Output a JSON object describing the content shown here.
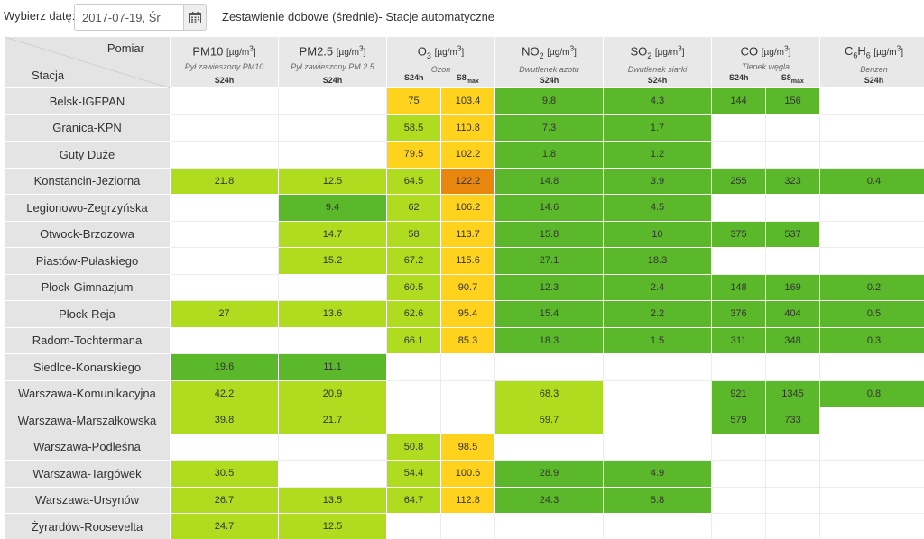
{
  "header": {
    "date_label": "Wybierz datę:",
    "date_value": "2017-07-19, Śr",
    "report_title": "Zestawienie dobowe (średnie)- Stacje automatyczne",
    "calendar_icon": "calendar-icon"
  },
  "table": {
    "corner_top": "Pomiar",
    "corner_bottom": "Stacja",
    "pollutants": [
      {
        "name": "PM10",
        "sub": "",
        "unit_pre": "[µg/m",
        "unit_sup": "3",
        "unit_post": "]",
        "desc": "Pył zawieszony PM10",
        "sub1": "S24h",
        "sub2": ""
      },
      {
        "name": "PM2.5",
        "sub": "",
        "unit_pre": "[µg/m",
        "unit_sup": "3",
        "unit_post": "]",
        "desc": "Pył zawieszony PM 2.5",
        "sub1": "S24h",
        "sub2": ""
      },
      {
        "name": "O",
        "sub": "3",
        "unit_pre": "[µg/m",
        "unit_sup": "3",
        "unit_post": "]",
        "desc": "Ozon",
        "sub1": "S24h",
        "sub2": "S8",
        "sub2_sub": "max"
      },
      {
        "name": "NO",
        "sub": "2",
        "unit_pre": "[µg/m",
        "unit_sup": "3",
        "unit_post": "]",
        "desc": "Dwutlenek azotu",
        "sub1": "S24h",
        "sub2": ""
      },
      {
        "name": "SO",
        "sub": "2",
        "unit_pre": "[µg/m",
        "unit_sup": "3",
        "unit_post": "]",
        "desc": "Dwutlenek siarki",
        "sub1": "S24h",
        "sub2": ""
      },
      {
        "name": "CO",
        "sub": "",
        "unit_pre": "[µg/m",
        "unit_sup": "3",
        "unit_post": "]",
        "desc": "Tlenek węgla",
        "sub1": "S24h",
        "sub2": "S8",
        "sub2_sub": "max"
      },
      {
        "name": "C",
        "sub": "6",
        "name2": "H",
        "sub_b": "6",
        "unit_pre": "[µg/m",
        "unit_sup": "3",
        "unit_post": "]",
        "desc": "Benzen",
        "sub1": "S24h",
        "sub2": ""
      }
    ],
    "level_colors": {
      "g": "#5cb82b",
      "l": "#afdc1e",
      "y": "#ffd21e",
      "o": "#e8860e",
      "e": "#ffffff"
    },
    "rows": [
      {
        "station": "Belsk-IGFPAN",
        "cells": [
          [
            "",
            ""
          ],
          [
            "",
            ""
          ],
          [
            "75",
            "y"
          ],
          [
            "103.4",
            "y"
          ],
          [
            "9.8",
            "g"
          ],
          [
            "4.3",
            "g"
          ],
          [
            "144",
            "g"
          ],
          [
            "156",
            "g"
          ],
          [
            "",
            ""
          ]
        ]
      },
      {
        "station": "Granica-KPN",
        "cells": [
          [
            "",
            ""
          ],
          [
            "",
            ""
          ],
          [
            "58.5",
            "l"
          ],
          [
            "110.8",
            "y"
          ],
          [
            "7.3",
            "g"
          ],
          [
            "1.7",
            "g"
          ],
          [
            "",
            ""
          ],
          [
            "",
            ""
          ],
          [
            "",
            ""
          ]
        ]
      },
      {
        "station": "Guty Duże",
        "cells": [
          [
            "",
            ""
          ],
          [
            "",
            ""
          ],
          [
            "79.5",
            "y"
          ],
          [
            "102.2",
            "y"
          ],
          [
            "1.8",
            "g"
          ],
          [
            "1.2",
            "g"
          ],
          [
            "",
            ""
          ],
          [
            "",
            ""
          ],
          [
            "",
            ""
          ]
        ]
      },
      {
        "station": "Konstancin-Jeziorna",
        "cells": [
          [
            "21.8",
            "l"
          ],
          [
            "12.5",
            "l"
          ],
          [
            "64.5",
            "l"
          ],
          [
            "122.2",
            "o"
          ],
          [
            "14.8",
            "g"
          ],
          [
            "3.9",
            "g"
          ],
          [
            "255",
            "g"
          ],
          [
            "323",
            "g"
          ],
          [
            "0.4",
            "g"
          ]
        ]
      },
      {
        "station": "Legionowo-Zegrzyńska",
        "cells": [
          [
            "",
            ""
          ],
          [
            "9.4",
            "g"
          ],
          [
            "62",
            "l"
          ],
          [
            "106.2",
            "y"
          ],
          [
            "14.6",
            "g"
          ],
          [
            "4.5",
            "g"
          ],
          [
            "",
            ""
          ],
          [
            "",
            ""
          ],
          [
            "",
            ""
          ]
        ]
      },
      {
        "station": "Otwock-Brzozowa",
        "cells": [
          [
            "",
            ""
          ],
          [
            "14.7",
            "l"
          ],
          [
            "58",
            "l"
          ],
          [
            "113.7",
            "y"
          ],
          [
            "15.8",
            "g"
          ],
          [
            "10",
            "g"
          ],
          [
            "375",
            "g"
          ],
          [
            "537",
            "g"
          ],
          [
            "",
            ""
          ]
        ]
      },
      {
        "station": "Piastów-Pułaskiego",
        "cells": [
          [
            "",
            ""
          ],
          [
            "15.2",
            "l"
          ],
          [
            "67.2",
            "l"
          ],
          [
            "115.6",
            "y"
          ],
          [
            "27.1",
            "g"
          ],
          [
            "18.3",
            "g"
          ],
          [
            "",
            ""
          ],
          [
            "",
            ""
          ],
          [
            "",
            ""
          ]
        ]
      },
      {
        "station": "Płock-Gimnazjum",
        "cells": [
          [
            "",
            ""
          ],
          [
            "",
            ""
          ],
          [
            "60.5",
            "l"
          ],
          [
            "90.7",
            "y"
          ],
          [
            "12.3",
            "g"
          ],
          [
            "2.4",
            "g"
          ],
          [
            "148",
            "g"
          ],
          [
            "169",
            "g"
          ],
          [
            "0.2",
            "g"
          ]
        ]
      },
      {
        "station": "Płock-Reja",
        "cells": [
          [
            "27",
            "l"
          ],
          [
            "13.6",
            "l"
          ],
          [
            "62.6",
            "l"
          ],
          [
            "95.4",
            "y"
          ],
          [
            "15.4",
            "g"
          ],
          [
            "2.2",
            "g"
          ],
          [
            "376",
            "g"
          ],
          [
            "404",
            "g"
          ],
          [
            "0.5",
            "g"
          ]
        ]
      },
      {
        "station": "Radom-Tochtermana",
        "cells": [
          [
            "",
            ""
          ],
          [
            "",
            ""
          ],
          [
            "66.1",
            "l"
          ],
          [
            "85.3",
            "y"
          ],
          [
            "18.3",
            "g"
          ],
          [
            "1.5",
            "g"
          ],
          [
            "311",
            "g"
          ],
          [
            "348",
            "g"
          ],
          [
            "0.3",
            "g"
          ]
        ]
      },
      {
        "station": "Siedlce-Konarskiego",
        "cells": [
          [
            "19.6",
            "g"
          ],
          [
            "11.1",
            "g"
          ],
          [
            "",
            ""
          ],
          [
            "",
            ""
          ],
          [
            "",
            ""
          ],
          [
            "",
            ""
          ],
          [
            "",
            ""
          ],
          [
            "",
            ""
          ],
          [
            "",
            ""
          ]
        ]
      },
      {
        "station": "Warszawa-Komunikacyjna",
        "cells": [
          [
            "42.2",
            "l"
          ],
          [
            "20.9",
            "l"
          ],
          [
            "",
            ""
          ],
          [
            "",
            ""
          ],
          [
            "68.3",
            "l"
          ],
          [
            "",
            ""
          ],
          [
            "921",
            "g"
          ],
          [
            "1345",
            "g"
          ],
          [
            "0.8",
            "g"
          ]
        ]
      },
      {
        "station": "Warszawa-Marszałkowska",
        "cells": [
          [
            "39.8",
            "l"
          ],
          [
            "21.7",
            "l"
          ],
          [
            "",
            ""
          ],
          [
            "",
            ""
          ],
          [
            "59.7",
            "l"
          ],
          [
            "",
            ""
          ],
          [
            "579",
            "g"
          ],
          [
            "733",
            "g"
          ],
          [
            "",
            ""
          ]
        ]
      },
      {
        "station": "Warszawa-Podleśna",
        "cells": [
          [
            "",
            ""
          ],
          [
            "",
            ""
          ],
          [
            "50.8",
            "l"
          ],
          [
            "98.5",
            "y"
          ],
          [
            "",
            ""
          ],
          [
            "",
            ""
          ],
          [
            "",
            ""
          ],
          [
            "",
            ""
          ],
          [
            "",
            ""
          ]
        ]
      },
      {
        "station": "Warszawa-Targówek",
        "cells": [
          [
            "30.5",
            "l"
          ],
          [
            "",
            ""
          ],
          [
            "54.4",
            "l"
          ],
          [
            "100.6",
            "y"
          ],
          [
            "28.9",
            "g"
          ],
          [
            "4.9",
            "g"
          ],
          [
            "",
            ""
          ],
          [
            "",
            ""
          ],
          [
            "",
            ""
          ]
        ]
      },
      {
        "station": "Warszawa-Ursynów",
        "cells": [
          [
            "26.7",
            "l"
          ],
          [
            "13.5",
            "l"
          ],
          [
            "64.7",
            "l"
          ],
          [
            "112.8",
            "y"
          ],
          [
            "24.3",
            "g"
          ],
          [
            "5.8",
            "g"
          ],
          [
            "",
            ""
          ],
          [
            "",
            ""
          ],
          [
            "",
            ""
          ]
        ]
      },
      {
        "station": "Żyrardów-Roosevelta",
        "cells": [
          [
            "24.7",
            "l"
          ],
          [
            "12.5",
            "l"
          ],
          [
            "",
            ""
          ],
          [
            "",
            ""
          ],
          [
            "",
            ""
          ],
          [
            "",
            ""
          ],
          [
            "",
            ""
          ],
          [
            "",
            ""
          ],
          [
            "",
            ""
          ]
        ]
      }
    ]
  }
}
